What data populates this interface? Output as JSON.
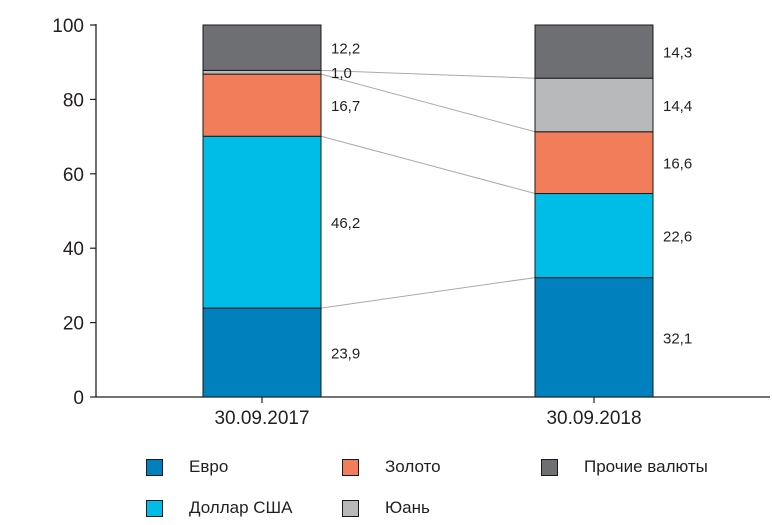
{
  "chart_data": {
    "type": "bar",
    "stacked": true,
    "categories": [
      "30.09.2017",
      "30.09.2018"
    ],
    "ylim": [
      0,
      100
    ],
    "yticks": [
      0,
      20,
      40,
      60,
      80,
      100
    ],
    "grid": false,
    "legend_position": "bottom",
    "series": [
      {
        "name": "Евро",
        "color": "#0080bc",
        "values": [
          23.9,
          32.1
        ],
        "labels": [
          "23,9",
          "32,1"
        ]
      },
      {
        "name": "Доллар США",
        "color": "#00bde7",
        "values": [
          46.2,
          22.6
        ],
        "labels": [
          "46,2",
          "22,6"
        ]
      },
      {
        "name": "Золото",
        "color": "#f27d5b",
        "values": [
          16.7,
          16.6
        ],
        "labels": [
          "16,7",
          "16,6"
        ]
      },
      {
        "name": "Юань",
        "color": "#b8b9bb",
        "values": [
          1.0,
          14.4
        ],
        "labels": [
          "1,0",
          "14,4"
        ]
      },
      {
        "name": "Прочие валюты",
        "color": "#6e6f72",
        "values": [
          12.2,
          14.3
        ],
        "labels": [
          "12,2",
          "14,3"
        ]
      }
    ]
  }
}
